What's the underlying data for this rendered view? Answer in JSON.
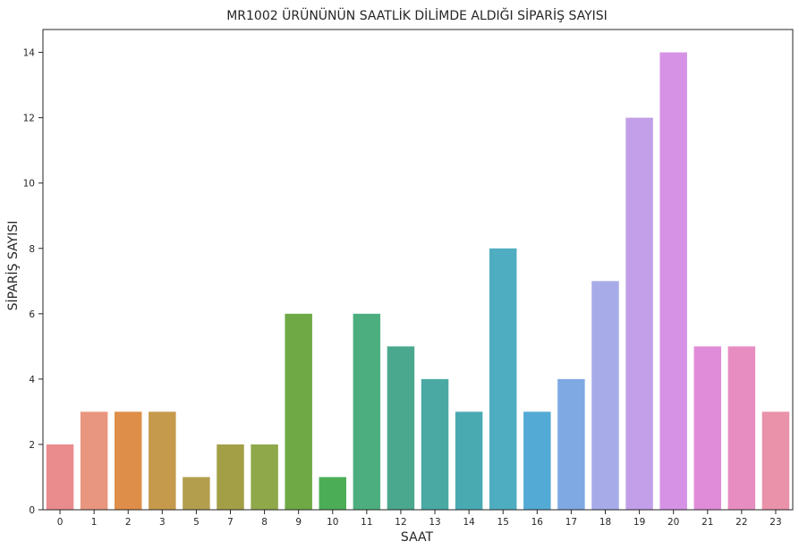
{
  "chart_data": {
    "type": "bar",
    "title": "MR1002 ÜRÜNÜNÜN SAATLİK DİLİMDE ALDIĞI SİPARİŞ SAYISI",
    "xlabel": "SAAT",
    "ylabel": "SİPARİŞ SAYISI",
    "ylim": [
      0,
      14.7
    ],
    "yticks": [
      0,
      2,
      4,
      6,
      8,
      10,
      12,
      14
    ],
    "grid": false,
    "categories": [
      "0",
      "1",
      "2",
      "3",
      "5",
      "7",
      "8",
      "9",
      "10",
      "11",
      "12",
      "13",
      "14",
      "15",
      "16",
      "17",
      "18",
      "19",
      "20",
      "21",
      "22",
      "23"
    ],
    "values": [
      2,
      3,
      3,
      3,
      1,
      2,
      2,
      6,
      1,
      6,
      5,
      4,
      3,
      8,
      3,
      4,
      7,
      12,
      14,
      5,
      5,
      3
    ],
    "colors": [
      "#ea8b8e",
      "#e8967f",
      "#df8e4a",
      "#c69a4c",
      "#b39e4e",
      "#a39f47",
      "#8fa84a",
      "#6ea946",
      "#4bae57",
      "#4cae7f",
      "#4aa88e",
      "#4aaaa3",
      "#4aaab2",
      "#4fadc1",
      "#53aad5",
      "#7fa9e3",
      "#a7abe8",
      "#c29fe8",
      "#d693e6",
      "#e18cd9",
      "#e88dc1",
      "#e992a9"
    ]
  }
}
